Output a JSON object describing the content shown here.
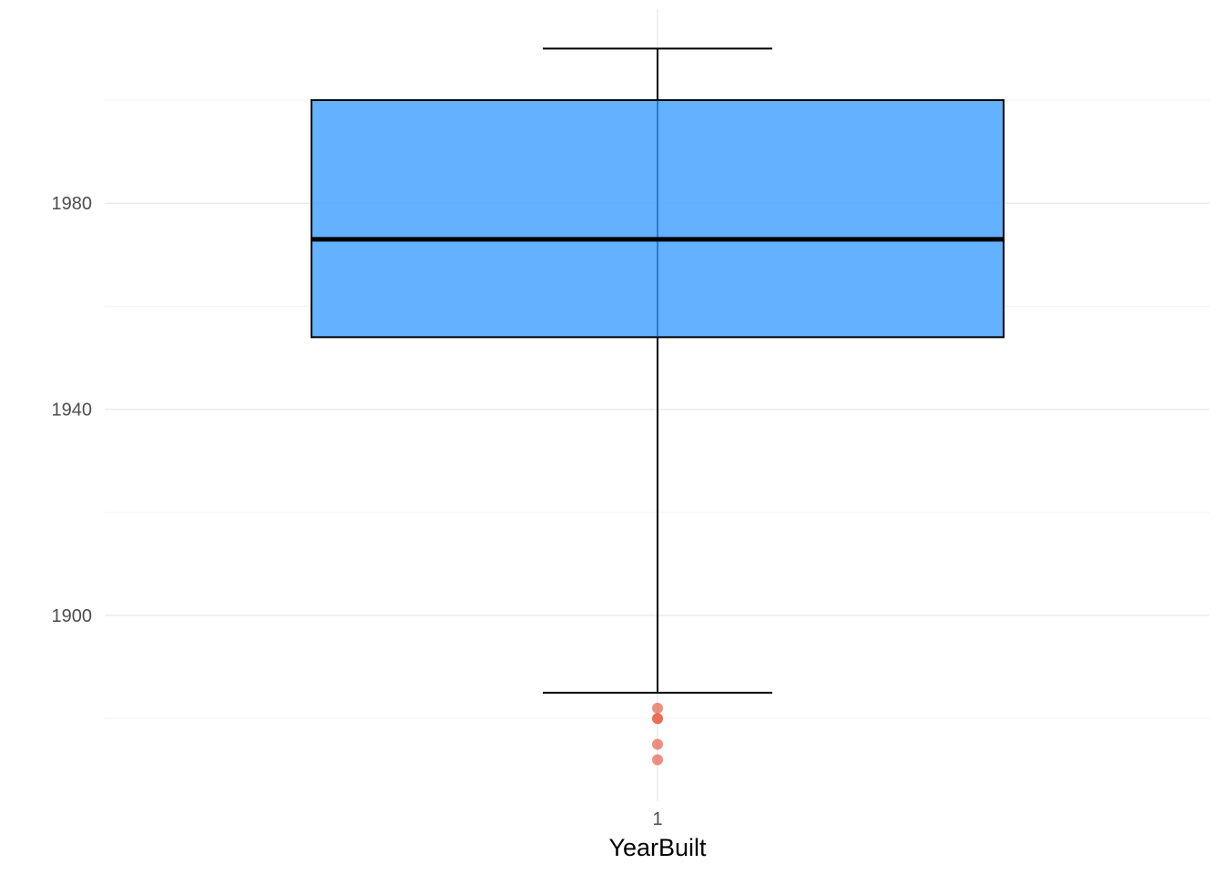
{
  "chart_data": {
    "type": "boxplot",
    "title": "",
    "xlabel": "YearBuilt",
    "ylabel": "",
    "categories": [
      "1"
    ],
    "y_ticks": [
      1900,
      1940,
      1980
    ],
    "ylim": [
      1865,
      2017
    ],
    "grid": true,
    "boxes": [
      {
        "category": "1",
        "min": 1885,
        "q1": 1954,
        "median": 1973,
        "q3": 2000,
        "max": 2010,
        "outliers": [
          1882,
          1880,
          1880,
          1875,
          1872
        ]
      }
    ],
    "colors": {
      "box_fill": "#4da6ff",
      "box_stroke": "#000000",
      "outlier": "#e8604a",
      "grid_major": "#ebebeb",
      "grid_minor": "#f4f4f4"
    }
  }
}
